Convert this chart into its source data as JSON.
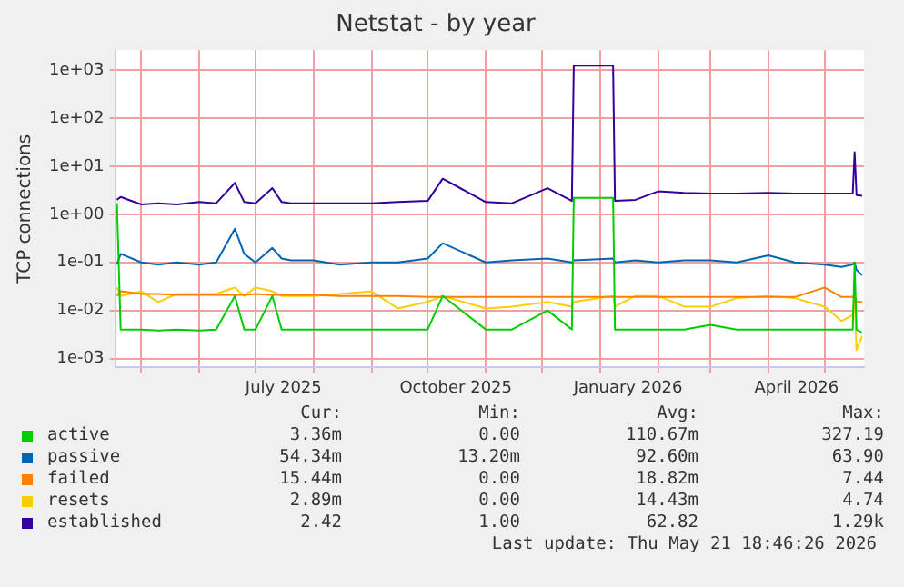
{
  "chart_data": {
    "type": "line",
    "title": "Netstat - by year",
    "ylabel": "TCP connections",
    "x": [
      "2025-04-18",
      "2025-04-20",
      "2025-05-01",
      "2025-05-10",
      "2025-05-20",
      "2025-06-01",
      "2025-06-10",
      "2025-06-20",
      "2025-06-25",
      "2025-07-01",
      "2025-07-10",
      "2025-07-15",
      "2025-07-20",
      "2025-08-01",
      "2025-08-15",
      "2025-09-01",
      "2025-09-15",
      "2025-10-01",
      "2025-10-09",
      "2025-11-01",
      "2025-11-15",
      "2025-12-04",
      "2025-12-17",
      "2025-12-18",
      "2026-01-08",
      "2026-01-09",
      "2026-01-20",
      "2026-02-01",
      "2026-02-15",
      "2026-03-01",
      "2026-03-15",
      "2026-04-01",
      "2026-04-15",
      "2026-05-01",
      "2026-05-10",
      "2026-05-16",
      "2026-05-17",
      "2026-05-18",
      "2026-05-21"
    ],
    "series": [
      {
        "name": "active",
        "color": "#00cc00",
        "values": [
          1.7,
          0.004,
          0.004,
          0.0038,
          0.004,
          0.0038,
          0.004,
          0.02,
          0.004,
          0.004,
          0.02,
          0.004,
          0.004,
          0.004,
          0.004,
          0.004,
          0.004,
          0.004,
          0.02,
          0.004,
          0.004,
          0.01,
          0.004,
          2.2,
          2.2,
          0.004,
          0.004,
          0.004,
          0.004,
          0.005,
          0.004,
          0.004,
          0.004,
          0.004,
          0.004,
          0.004,
          0.1,
          0.004,
          0.0034
        ]
      },
      {
        "name": "passive",
        "color": "#0066b3",
        "values": [
          0.09,
          0.15,
          0.1,
          0.09,
          0.1,
          0.09,
          0.1,
          0.5,
          0.15,
          0.1,
          0.2,
          0.12,
          0.11,
          0.11,
          0.09,
          0.1,
          0.1,
          0.12,
          0.25,
          0.1,
          0.11,
          0.12,
          0.1,
          0.11,
          0.12,
          0.1,
          0.11,
          0.1,
          0.11,
          0.11,
          0.1,
          0.14,
          0.1,
          0.09,
          0.08,
          0.09,
          0.1,
          0.07,
          0.054
        ]
      },
      {
        "name": "failed",
        "color": "#ff8000",
        "values": [
          0.02,
          0.025,
          0.022,
          0.022,
          0.021,
          0.021,
          0.021,
          0.021,
          0.021,
          0.022,
          0.021,
          0.021,
          0.021,
          0.021,
          0.02,
          0.02,
          0.02,
          0.019,
          0.019,
          0.019,
          0.019,
          0.019,
          0.019,
          0.019,
          0.019,
          0.019,
          0.019,
          0.019,
          0.019,
          0.019,
          0.019,
          0.019,
          0.019,
          0.03,
          0.019,
          0.019,
          0.019,
          0.015,
          0.015
        ]
      },
      {
        "name": "resets",
        "color": "#ffcc00",
        "values": [
          0.03,
          0.02,
          0.025,
          0.015,
          0.022,
          0.022,
          0.022,
          0.03,
          0.02,
          0.03,
          0.025,
          0.02,
          0.02,
          0.02,
          0.022,
          0.025,
          0.011,
          0.015,
          0.02,
          0.011,
          0.012,
          0.015,
          0.012,
          0.015,
          0.02,
          0.012,
          0.02,
          0.02,
          0.012,
          0.012,
          0.018,
          0.02,
          0.018,
          0.012,
          0.006,
          0.008,
          0.02,
          0.0015,
          0.0029
        ]
      },
      {
        "name": "established",
        "color": "#330099",
        "values": [
          2.0,
          2.3,
          1.6,
          1.7,
          1.6,
          1.8,
          1.7,
          4.5,
          1.8,
          1.7,
          3.5,
          1.8,
          1.7,
          1.7,
          1.7,
          1.7,
          1.8,
          1.9,
          5.5,
          1.8,
          1.7,
          3.5,
          1.9,
          1240,
          1240,
          1.9,
          2.0,
          3.0,
          2.8,
          2.7,
          2.7,
          2.8,
          2.7,
          2.7,
          2.7,
          2.7,
          19.6,
          2.5,
          2.42
        ]
      }
    ],
    "log": "y",
    "ylim": [
      0.00065,
      2600
    ],
    "yticks": [
      {
        "value": 0.001,
        "label": "1e-03"
      },
      {
        "value": 0.01,
        "label": "1e-02"
      },
      {
        "value": 0.1,
        "label": "1e-01"
      },
      {
        "value": 1,
        "label": "1e+00"
      },
      {
        "value": 10,
        "label": "1e+01"
      },
      {
        "value": 100,
        "label": "1e+02"
      },
      {
        "value": 1000,
        "label": "1e+03"
      }
    ],
    "xlim": [
      "2025-04-17",
      "2026-05-22"
    ],
    "xticks": [
      {
        "value": "2025-05-01",
        "label": null
      },
      {
        "value": "2025-06-01",
        "label": null
      },
      {
        "value": "2025-07-01",
        "label": null
      },
      {
        "value": "2025-07-16",
        "label": "July 2025"
      },
      {
        "value": "2025-08-01",
        "label": null
      },
      {
        "value": "2025-09-01",
        "label": null
      },
      {
        "value": "2025-10-01",
        "label": null
      },
      {
        "value": "2025-10-16",
        "label": "October 2025"
      },
      {
        "value": "2025-11-01",
        "label": null
      },
      {
        "value": "2025-12-01",
        "label": null
      },
      {
        "value": "2026-01-01",
        "label": null
      },
      {
        "value": "2026-01-16",
        "label": "January 2026"
      },
      {
        "value": "2026-02-01",
        "label": null
      },
      {
        "value": "2026-03-01",
        "label": null
      },
      {
        "value": "2026-04-01",
        "label": null
      },
      {
        "value": "2026-04-16",
        "label": "April 2026"
      },
      {
        "value": "2026-05-01",
        "label": null
      }
    ],
    "grid": true,
    "legend": "bottom",
    "marker": "none",
    "line_style": "solid",
    "annotations": [
      "Cur:",
      "Min:",
      "Avg:",
      "Max:",
      "3.36m",
      "0.00",
      "110.67m",
      "327.19",
      "54.34m",
      "13.20m",
      "92.60m",
      "63.90",
      "15.44m",
      "0.00",
      "18.82m",
      "7.44",
      "2.89m",
      "0.00",
      "14.43m",
      "4.74",
      "2.42",
      "1.00",
      "62.82",
      "1.29k",
      "Last update: Thu May 21 18:46:26 2026"
    ]
  }
}
